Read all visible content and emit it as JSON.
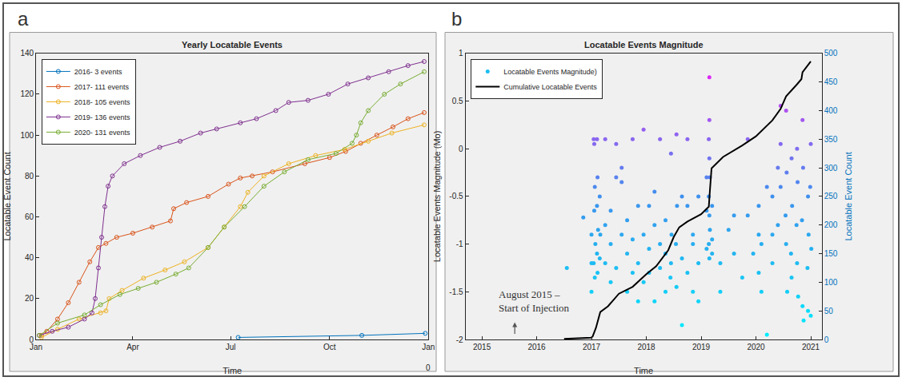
{
  "chart_data": [
    {
      "panel_label": "a",
      "type": "line",
      "title": "Yearly Locatable Events",
      "x_label": "Time",
      "y_label": "Locatable Event Count",
      "xlim": [
        0,
        365
      ],
      "xticks": [
        {
          "value": 0,
          "label": "Jan"
        },
        {
          "value": 90,
          "label": "Apr"
        },
        {
          "value": 181,
          "label": "Jul"
        },
        {
          "value": 273,
          "label": "Oct"
        },
        {
          "value": 365,
          "label": "Jan"
        }
      ],
      "ylim": [
        0,
        140
      ],
      "yticks": [
        0,
        20,
        40,
        60,
        80,
        100,
        120,
        140
      ],
      "grid": false,
      "legend": "upper left",
      "marker": "circle",
      "annotations": [
        {
          "text": "0",
          "x": 365
        }
      ],
      "series": [
        {
          "name": "2016- 3 events",
          "color": "#0072BD",
          "x": [
            188,
            303,
            362
          ],
          "values": [
            1,
            2,
            3
          ]
        },
        {
          "name": "2017- 111 events",
          "color": "#D95319",
          "x": [
            5,
            10,
            20,
            30,
            40,
            50,
            58,
            65,
            75,
            90,
            108,
            125,
            128,
            140,
            160,
            179,
            190,
            201,
            220,
            250,
            273,
            288,
            302,
            317,
            332,
            346,
            361
          ],
          "values": [
            2,
            4,
            10,
            18,
            28,
            38,
            45,
            47,
            50,
            52,
            55,
            58,
            64,
            67,
            70,
            76,
            79,
            80,
            82,
            86,
            89,
            92,
            96,
            100,
            104,
            108,
            111
          ]
        },
        {
          "name": "2018- 105 events",
          "color": "#EDB120",
          "x": [
            5,
            20,
            40,
            60,
            65,
            68,
            80,
            100,
            120,
            138,
            160,
            175,
            190,
            197,
            212,
            235,
            260,
            287,
            309,
            331,
            361
          ],
          "values": [
            1,
            5,
            10,
            13,
            14,
            20,
            24,
            30,
            34,
            38,
            45,
            55,
            65,
            72,
            80,
            86,
            90,
            93,
            97,
            101,
            105
          ]
        },
        {
          "name": "2019- 136 events",
          "color": "#7E2F8E",
          "x": [
            3,
            15,
            30,
            45,
            52,
            55,
            58,
            61,
            64,
            67,
            71,
            82,
            97,
            115,
            134,
            153,
            168,
            190,
            205,
            223,
            235,
            253,
            272,
            290,
            309,
            328,
            346,
            361
          ],
          "values": [
            2,
            4,
            6,
            10,
            13,
            20,
            35,
            50,
            65,
            75,
            80,
            86,
            90,
            94,
            97,
            101,
            103,
            106,
            108,
            112,
            116,
            117,
            120,
            125,
            128,
            131,
            134,
            136
          ]
        },
        {
          "name": "2020- 131 events",
          "color": "#77AC30",
          "x": [
            3,
            20,
            45,
            60,
            78,
            95,
            112,
            130,
            142,
            160,
            175,
            194,
            212,
            231,
            253,
            279,
            294,
            298,
            302,
            309,
            324,
            339,
            361
          ],
          "values": [
            2,
            8,
            12,
            17,
            22,
            25,
            28,
            32,
            35,
            45,
            55,
            65,
            75,
            82,
            88,
            91,
            96,
            100,
            106,
            112,
            120,
            125,
            131
          ]
        }
      ]
    },
    {
      "panel_label": "b",
      "type": "scatter",
      "title": "Locatable Events Magnitude",
      "x_label": "Time",
      "y_label": "Locatable Events Magnitude (Mo)",
      "y2_label": "Locatable Event Count",
      "xlim": [
        2014.7,
        2021.2
      ],
      "xticks": [
        2015,
        2016,
        2017,
        2018,
        2019,
        2020,
        2021
      ],
      "ylim": [
        -2,
        1
      ],
      "yticks": [
        -2,
        -1.5,
        -1,
        -0.5,
        0,
        0.5,
        1
      ],
      "y2lim": [
        0,
        500
      ],
      "y2ticks": [
        0,
        50,
        100,
        150,
        200,
        250,
        300,
        350,
        400,
        450,
        500
      ],
      "grid": false,
      "legend": "upper left",
      "annotations": [
        {
          "lines": [
            "August 2015 –",
            "Start of Injection"
          ],
          "x": 2015.6
        }
      ],
      "series": [
        {
          "name": "Locatable Events Magnitude)",
          "type": "scatter",
          "marker": "circle",
          "x": [
            2016.55,
            2016.85,
            2017.0,
            2017.0,
            2017.0,
            2017.04,
            2017.05,
            2017.06,
            2017.05,
            2017.07,
            2017.04,
            2017.06,
            2017.1,
            2017.11,
            2017.1,
            2017.12,
            2017.1,
            2017.11,
            2017.15,
            2017.16,
            2017.15,
            2017.25,
            2017.25,
            2017.25,
            2017.35,
            2017.35,
            2017.35,
            2017.45,
            2017.45,
            2017.45,
            2017.55,
            2017.55,
            2017.55,
            2017.65,
            2017.65,
            2017.65,
            2017.75,
            2017.75,
            2017.75,
            2017.85,
            2017.85,
            2017.85,
            2017.95,
            2017.95,
            2017.95,
            2018.05,
            2018.05,
            2018.05,
            2018.15,
            2018.15,
            2018.15,
            2018.25,
            2018.25,
            2018.25,
            2018.35,
            2018.35,
            2018.35,
            2018.45,
            2018.46,
            2018.44,
            2018.45,
            2018.55,
            2018.56,
            2018.54,
            2018.55,
            2018.65,
            2018.65,
            2018.65,
            2018.75,
            2018.75,
            2018.75,
            2018.85,
            2018.85,
            2018.85,
            2018.95,
            2018.95,
            2018.95,
            2019.1,
            2019.1,
            2019.1,
            2019.15,
            2019.15,
            2019.14,
            2019.15,
            2019.16,
            2019.14,
            2019.15,
            2019.16,
            2019.14,
            2019.15,
            2019.2,
            2019.2,
            2019.2,
            2019.35,
            2019.35,
            2019.5,
            2019.6,
            2019.6,
            2019.75,
            2019.85,
            2019.85,
            2019.95,
            2020.05,
            2020.05,
            2020.05,
            2020.1,
            2020.1,
            2020.2,
            2020.2,
            2020.3,
            2020.3,
            2020.3,
            2020.4,
            2020.4,
            2020.45,
            2020.45,
            2020.45,
            2020.55,
            2020.56,
            2020.54,
            2020.55,
            2020.57,
            2020.65,
            2020.66,
            2020.64,
            2020.65,
            2020.75,
            2020.76,
            2020.74,
            2020.75,
            2020.77,
            2020.85,
            2020.86,
            2020.84,
            2020.85,
            2020.87,
            2020.95,
            2020.96,
            2020.94,
            2020.95,
            2021.0,
            2020.99,
            2021.01,
            2021.0
          ],
          "values": [
            -1.25,
            -0.72,
            -1.5,
            -1.2,
            -0.9,
            0.1,
            0.05,
            -0.4,
            -0.65,
            -1.0,
            -1.2,
            -1.35,
            0.1,
            -0.3,
            -0.6,
            -0.85,
            -1.1,
            -1.3,
            -0.5,
            -0.9,
            -1.15,
            0.1,
            -0.8,
            -1.2,
            -0.65,
            -1.0,
            -1.4,
            0.05,
            -0.3,
            -1.25,
            -0.2,
            -0.35,
            -0.9,
            -0.75,
            -1.1,
            -1.5,
            0.1,
            -1.3,
            -0.95,
            -0.6,
            -1.6,
            -1.2,
            0.2,
            -0.9,
            -1.4,
            -0.6,
            -1.05,
            -1.3,
            -0.45,
            -0.8,
            -1.6,
            0.1,
            -1.0,
            -1.25,
            -0.75,
            -1.1,
            -1.5,
            -0.05,
            -0.9,
            -1.35,
            -1.2,
            0.15,
            -0.6,
            -1.0,
            -1.45,
            -0.5,
            -1.85,
            -1.15,
            0.1,
            -0.6,
            -1.3,
            -0.9,
            -1.5,
            -1.0,
            -0.5,
            -1.2,
            -1.6,
            -0.3,
            -0.65,
            -1.05,
            0.75,
            0.3,
            0.1,
            -0.1,
            -0.3,
            -0.5,
            -0.7,
            -0.85,
            -1.0,
            -1.15,
            -0.6,
            -0.95,
            -1.1,
            -1.2,
            -1.5,
            -0.85,
            -0.7,
            -1.1,
            -1.35,
            0.1,
            -0.7,
            -1.1,
            -0.6,
            -0.9,
            -1.3,
            -1.5,
            -1.0,
            -0.4,
            -1.95,
            -0.5,
            -0.9,
            -1.2,
            -0.2,
            -0.8,
            0.45,
            0.05,
            -0.4,
            0.4,
            -0.25,
            -0.7,
            -1.0,
            -1.5,
            -0.1,
            -0.6,
            -1.1,
            -1.35,
            0.0,
            -0.35,
            -0.8,
            -1.2,
            -1.55,
            0.3,
            -0.2,
            -0.75,
            -1.65,
            -1.8,
            -0.5,
            -0.9,
            -1.25,
            -1.7,
            0.05,
            -0.4,
            -1.05,
            -1.75
          ]
        },
        {
          "name": "Cumulative Locatable Events",
          "type": "line",
          "color": "#000000",
          "axis": "y2",
          "x": [
            2016.5,
            2016.82,
            2016.99,
            2017.02,
            2017.08,
            2017.16,
            2017.3,
            2017.5,
            2017.75,
            2018.0,
            2018.18,
            2018.4,
            2018.5,
            2018.6,
            2018.75,
            2019.0,
            2019.14,
            2019.16,
            2019.19,
            2019.4,
            2019.6,
            2019.75,
            2020.0,
            2020.3,
            2020.45,
            2020.55,
            2020.75,
            2020.83,
            2020.85,
            2021.0
          ],
          "values": [
            1,
            2,
            3,
            5,
            20,
            48,
            58,
            80,
            92,
            114,
            128,
            156,
            179,
            196,
            206,
            219,
            232,
            260,
            299,
            319,
            330,
            339,
            355,
            383,
            403,
            425,
            446,
            455,
            467,
            486
          ]
        }
      ]
    }
  ]
}
